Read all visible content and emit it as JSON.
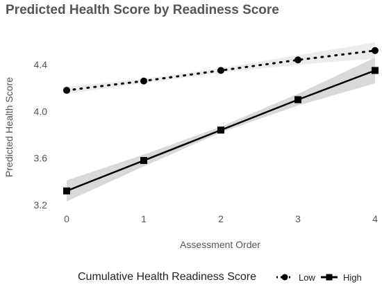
{
  "chart_data": {
    "type": "line",
    "title": "Predicted Health Score by Readiness Score",
    "xlabel": "Assessment Order",
    "ylabel": "Predicted Health Score",
    "x": [
      0,
      1,
      2,
      3,
      4
    ],
    "xlim": [
      0,
      4
    ],
    "ylim": [
      3.2,
      4.5
    ],
    "yticks": [
      "3.2",
      "3.6",
      "4.0",
      "4.4"
    ],
    "xticks": [
      "0",
      "1",
      "2",
      "3",
      "4"
    ],
    "grid": false,
    "legend": {
      "title": "Cumulative Health Readiness Score",
      "position": "bottom",
      "entries": [
        "Low",
        "High"
      ]
    },
    "series": [
      {
        "name": "Low",
        "marker": "circle",
        "line": "dotted",
        "values": [
          4.18,
          4.26,
          4.35,
          4.44,
          4.52
        ],
        "ci_lower": [
          4.15,
          4.24,
          4.33,
          4.4,
          4.45
        ],
        "ci_upper": [
          4.21,
          4.28,
          4.37,
          4.48,
          4.59
        ]
      },
      {
        "name": "High",
        "marker": "square",
        "line": "solid",
        "values": [
          3.32,
          3.58,
          3.84,
          4.1,
          4.35
        ],
        "ci_lower": [
          3.23,
          3.53,
          3.82,
          4.05,
          4.24
        ],
        "ci_upper": [
          3.41,
          3.63,
          3.87,
          4.15,
          4.46
        ]
      }
    ],
    "colors": {
      "line": "#000000",
      "ribbon": "#d9d9d9",
      "title": "#555555"
    }
  }
}
